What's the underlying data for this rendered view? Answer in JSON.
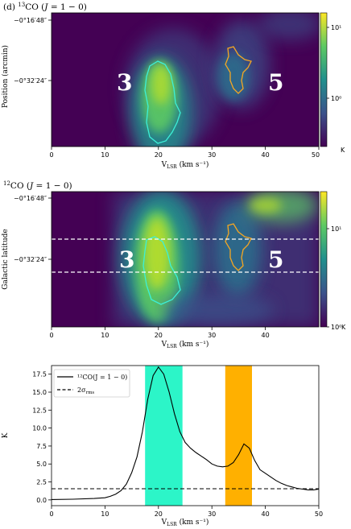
{
  "panel1": {
    "title_prefix": "(d) ",
    "title_sup": "13",
    "title_main": "CO (",
    "title_j": "J",
    "title_rest": " = 1 − 0)",
    "ylabel": "Position (arcmin)",
    "ytick_top": "−0°16′48″",
    "ytick_mid": "−0°32′24″",
    "cbar_ticks": [
      "10¹",
      "10⁰"
    ],
    "cbar_unit": "K",
    "xticks": [
      "0",
      "10",
      "20",
      "30",
      "40",
      "50"
    ],
    "xlabel_main": "V",
    "xlabel_sub": "LSR",
    "xlabel_unit": "  (km s⁻¹)",
    "region_labels": [
      "3",
      "5"
    ]
  },
  "panel2": {
    "title_sup": "12",
    "title_main": "CO (",
    "title_j": "J",
    "title_rest": " = 1 − 0)",
    "ylabel": "Galactic latitude",
    "ytick_top": "−0°16′48″",
    "ytick_mid": "−0°32′24″",
    "cbar_ticks": [
      "10¹",
      "10⁰"
    ],
    "cbar_unit": "K",
    "xticks": [
      "0",
      "10",
      "20",
      "30",
      "40"
    ],
    "xlabel_main": "V",
    "xlabel_sub": "LSR",
    "xlabel_unit": "  (km s⁻¹)",
    "region_labels": [
      "3",
      "5"
    ]
  },
  "panel3": {
    "ylabel": "K",
    "legend": [
      "¹²CO(J = 1 − 0)",
      "2σ"
    ],
    "legend_sub": "rms",
    "xlabel_main": "V",
    "xlabel_sub": "LSR",
    "xlabel_unit": "  (km s⁻¹)"
  },
  "colors": {
    "cyan_band": "#2cf5c8",
    "orange_band": "#ffb000",
    "contour_cyan": "#3cf0d8",
    "contour_orange": "#f5a623",
    "viridis_low": "#440154",
    "viridis_high": "#fde725"
  },
  "chart_data": [
    {
      "type": "heatmap",
      "title": "(d) 13CO (J = 1 − 0)",
      "xlabel": "VLSR (km s−1)",
      "ylabel": "Position (arcmin)",
      "xlim": [
        0,
        50
      ],
      "colorbar": {
        "scale": "log",
        "ticks": [
          "10⁰",
          "10¹"
        ],
        "unit": "K"
      },
      "annotations": [
        "3",
        "5"
      ]
    },
    {
      "type": "heatmap",
      "title": "12CO (J = 1 − 0)",
      "xlabel": "VLSR (km s−1)",
      "ylabel": "Galactic latitude",
      "xlim": [
        0,
        50
      ],
      "colorbar": {
        "scale": "log",
        "ticks": [
          "10⁰",
          "10¹"
        ],
        "unit": "K"
      },
      "annotations": [
        "3",
        "5"
      ]
    },
    {
      "type": "line",
      "xlabel": "VLSR (km s−1)",
      "ylabel": "K",
      "xlim": [
        0,
        50
      ],
      "ylim": [
        -0.8,
        18.7
      ],
      "xticks": [
        0,
        10,
        20,
        30,
        40,
        50
      ],
      "yticks": [
        0.0,
        2.5,
        5.0,
        7.5,
        10.0,
        12.5,
        15.0,
        17.5
      ],
      "legend_position": "top-left",
      "bands": [
        {
          "x0": 17.5,
          "x1": 24.5,
          "color": "#2cf5c8"
        },
        {
          "x0": 32.5,
          "x1": 37.5,
          "color": "#ffb000"
        }
      ],
      "series": [
        {
          "name": "12CO(J = 1 − 0)",
          "style": "solid",
          "x": [
            0,
            4,
            8,
            10,
            11,
            12,
            13,
            14,
            15,
            16,
            17,
            18,
            19,
            20,
            21,
            22,
            23,
            24,
            25,
            26,
            27,
            28,
            29,
            30,
            31,
            32,
            33,
            34,
            35,
            36,
            37,
            38,
            39,
            40,
            41,
            42,
            43,
            44,
            45,
            46,
            47,
            48,
            49,
            50
          ],
          "y": [
            0.05,
            0.1,
            0.2,
            0.3,
            0.5,
            0.8,
            1.3,
            2.2,
            3.8,
            6.0,
            9.5,
            14.0,
            17.3,
            18.5,
            17.5,
            15.0,
            12.0,
            9.5,
            8.0,
            7.2,
            6.6,
            6.1,
            5.6,
            5.0,
            4.7,
            4.6,
            4.7,
            5.2,
            6.3,
            7.8,
            7.2,
            5.5,
            4.2,
            3.7,
            3.2,
            2.7,
            2.3,
            2.0,
            1.8,
            1.6,
            1.5,
            1.4,
            1.4,
            1.5
          ]
        },
        {
          "name": "2σrms",
          "style": "dashed",
          "x": [
            0,
            50
          ],
          "y": [
            1.55,
            1.55
          ]
        }
      ]
    }
  ]
}
